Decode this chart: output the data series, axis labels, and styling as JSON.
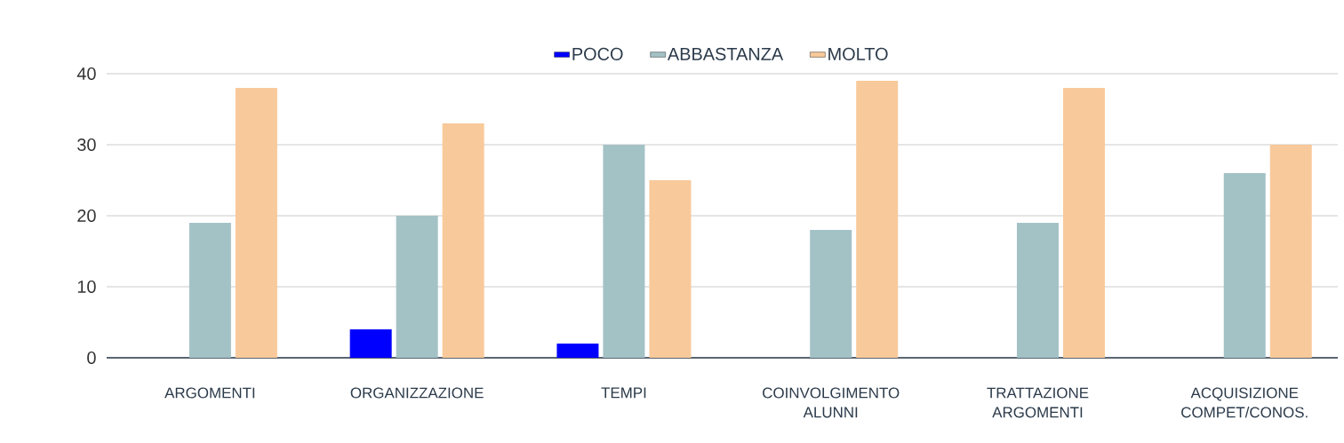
{
  "chart_data": {
    "type": "bar",
    "categories": [
      "ARGOMENTI",
      "ORGANIZZAZIONE",
      "TEMPI",
      "COINVOLGIMENTO ALUNNI",
      "TRATTAZIONE ARGOMENTI",
      "ACQUISIZIONE COMPET/CONOS."
    ],
    "series": [
      {
        "name": "POCO",
        "color": "#0000ff",
        "values": [
          null,
          4,
          2,
          null,
          null,
          null
        ]
      },
      {
        "name": "ABBASTANZA",
        "color": "#a3c2c6",
        "values": [
          19,
          20,
          30,
          18,
          19,
          26
        ]
      },
      {
        "name": "MOLTO",
        "color": "#f8c99a",
        "values": [
          38,
          33,
          25,
          39,
          38,
          30
        ]
      }
    ],
    "ylim": [
      0,
      40
    ],
    "yticks": [
      0,
      10,
      20,
      30,
      40
    ],
    "grid": "y",
    "legend": "top"
  }
}
